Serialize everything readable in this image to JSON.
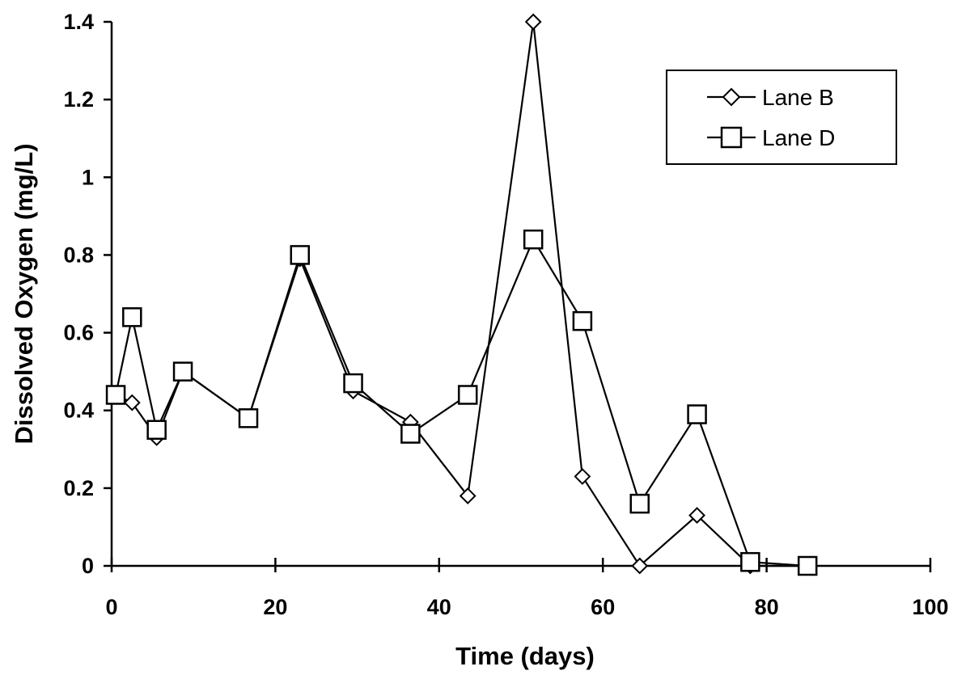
{
  "chart_data": {
    "type": "line",
    "title": "",
    "xlabel": "Time (days)",
    "ylabel": "Dissolved Oxygen (mg/L)",
    "xlim": [
      0,
      100
    ],
    "ylim": [
      0,
      1.4
    ],
    "xticks": [
      "0",
      "20",
      "40",
      "60",
      "80",
      "100"
    ],
    "yticks": [
      "0",
      "0.2",
      "0.4",
      "0.6",
      "0.8",
      "1",
      "1.2",
      "1.4"
    ],
    "xtick_values": [
      0,
      20,
      40,
      60,
      80,
      100
    ],
    "ytick_values": [
      0,
      0.2,
      0.4,
      0.6,
      0.8,
      1.0,
      1.2,
      1.4
    ],
    "grid": false,
    "legend_position": "top-right",
    "series": [
      {
        "name": "Lane B",
        "marker": "diamond",
        "x": [
          0.5,
          2.5,
          5.5,
          8.7,
          16.7,
          23,
          29.5,
          36.5,
          43.5,
          51.5,
          57.5,
          64.5,
          71.5,
          78,
          85
        ],
        "y": [
          0.44,
          0.42,
          0.33,
          0.5,
          0.38,
          0.79,
          0.45,
          0.37,
          0.18,
          1.4,
          0.23,
          0,
          0.13,
          0,
          0
        ]
      },
      {
        "name": "Lane D",
        "marker": "square",
        "x": [
          0.5,
          2.5,
          5.5,
          8.7,
          16.7,
          23,
          29.5,
          36.5,
          43.5,
          51.5,
          57.5,
          64.5,
          71.5,
          78,
          85
        ],
        "y": [
          0.44,
          0.64,
          0.35,
          0.5,
          0.38,
          0.8,
          0.47,
          0.34,
          0.44,
          0.84,
          0.63,
          0.16,
          0.39,
          0.01,
          0
        ]
      }
    ]
  }
}
